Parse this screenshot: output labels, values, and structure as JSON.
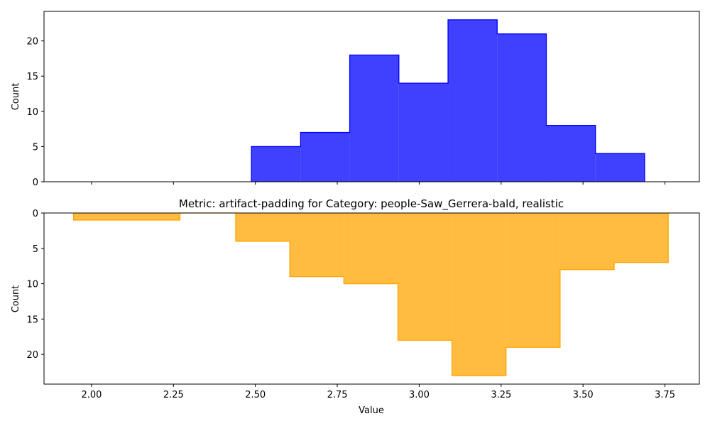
{
  "chart_data": [
    {
      "type": "histogram",
      "title": "",
      "xlabel": "",
      "ylabel": "Count",
      "orientation": "up",
      "color": "#0000ff",
      "xlim": [
        1.855,
        3.855
      ],
      "ylim": [
        0,
        24.2
      ],
      "x_ticks_shown": false,
      "yticks": [
        0,
        5,
        10,
        15,
        20
      ],
      "bin_edges": [
        2.488,
        2.638,
        2.788,
        2.938,
        3.088,
        3.238,
        3.388,
        3.538,
        3.688
      ],
      "counts": [
        5,
        7,
        18,
        14,
        23,
        21,
        8,
        4
      ]
    },
    {
      "type": "histogram",
      "title": "Metric: artifact-padding for Category: people-Saw_Gerrera-bald, realistic",
      "xlabel": "Value",
      "ylabel": "Count",
      "orientation": "down",
      "color": "#ffa500",
      "xlim": [
        1.855,
        3.855
      ],
      "ylim": [
        0,
        24.2
      ],
      "xticks": [
        "2.00",
        "2.25",
        "2.50",
        "2.75",
        "3.00",
        "3.25",
        "3.50",
        "3.75"
      ],
      "yticks": [
        0,
        5,
        10,
        15,
        20
      ],
      "bin_edges": [
        1.945,
        2.1,
        2.27,
        2.44,
        2.605,
        2.77,
        2.935,
        3.1,
        3.265,
        3.43,
        3.595,
        3.76
      ],
      "counts": [
        1,
        1,
        0,
        4,
        9,
        10,
        18,
        23,
        19,
        8,
        7
      ]
    }
  ]
}
